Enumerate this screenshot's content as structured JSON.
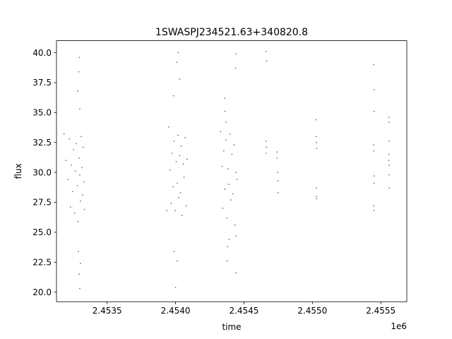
{
  "chart_data": {
    "type": "scatter",
    "title": "1SWASPJ234521.63+340820.8",
    "xlabel": "time",
    "ylabel": "flux",
    "x_offset_label": "1e6",
    "xlim": [
      2453130,
      2455690
    ],
    "ylim": [
      19.2,
      41.0
    ],
    "x_ticks": [
      2453500,
      2454000,
      2454500,
      2455000,
      2455500
    ],
    "x_tick_labels": [
      "2.4535",
      "2.4540",
      "2.4545",
      "2.4550",
      "2.4555"
    ],
    "y_ticks": [
      20.0,
      22.5,
      25.0,
      27.5,
      30.0,
      32.5,
      35.0,
      37.5,
      40.0
    ],
    "y_tick_labels": [
      "20.0",
      "22.5",
      "25.0",
      "27.5",
      "30.0",
      "32.5",
      "35.0",
      "37.5",
      "40.0"
    ],
    "grid": false,
    "point_color": "#1f77b4",
    "series": [
      {
        "points": [
          [
            2453185,
            33.2
          ],
          [
            2453200,
            31.0
          ],
          [
            2453215,
            29.4
          ],
          [
            2453225,
            32.8
          ],
          [
            2453232,
            27.1
          ],
          [
            2453240,
            30.6
          ],
          [
            2453248,
            28.4
          ],
          [
            2453255,
            31.9
          ],
          [
            2453262,
            26.6
          ],
          [
            2453268,
            30.1
          ],
          [
            2453275,
            32.4
          ],
          [
            2453282,
            28.9
          ],
          [
            2453288,
            25.9
          ],
          [
            2453295,
            31.2
          ],
          [
            2453300,
            29.8
          ],
          [
            2453305,
            27.6
          ],
          [
            2453310,
            33.0
          ],
          [
            2453315,
            30.4
          ],
          [
            2453320,
            28.1
          ],
          [
            2453325,
            32.1
          ],
          [
            2453330,
            29.2
          ],
          [
            2453335,
            26.9
          ],
          [
            2453285,
            36.8
          ],
          [
            2453292,
            38.4
          ],
          [
            2453298,
            39.6
          ],
          [
            2453300,
            35.3
          ],
          [
            2453290,
            23.4
          ],
          [
            2453295,
            21.5
          ],
          [
            2453300,
            20.3
          ],
          [
            2453305,
            22.4
          ],
          [
            2453950,
            33.8
          ],
          [
            2453960,
            30.2
          ],
          [
            2453968,
            27.4
          ],
          [
            2453975,
            31.6
          ],
          [
            2453982,
            28.8
          ],
          [
            2453990,
            32.6
          ],
          [
            2453998,
            26.8
          ],
          [
            2454005,
            30.9
          ],
          [
            2454012,
            29.1
          ],
          [
            2454018,
            33.1
          ],
          [
            2454024,
            27.9
          ],
          [
            2454030,
            31.4
          ],
          [
            2454036,
            28.3
          ],
          [
            2454042,
            32.2
          ],
          [
            2454048,
            26.4
          ],
          [
            2454055,
            30.7
          ],
          [
            2454062,
            29.6
          ],
          [
            2454070,
            32.9
          ],
          [
            2454078,
            27.2
          ],
          [
            2454085,
            31.1
          ],
          [
            2453985,
            36.4
          ],
          [
            2454010,
            39.2
          ],
          [
            2454020,
            40.0
          ],
          [
            2454030,
            37.8
          ],
          [
            2453990,
            23.4
          ],
          [
            2454000,
            20.4
          ],
          [
            2454012,
            22.6
          ],
          [
            2453935,
            26.8
          ],
          [
            2454330,
            33.4
          ],
          [
            2454338,
            30.5
          ],
          [
            2454345,
            27.0
          ],
          [
            2454352,
            31.8
          ],
          [
            2454360,
            28.6
          ],
          [
            2454368,
            32.7
          ],
          [
            2454375,
            26.2
          ],
          [
            2454382,
            30.3
          ],
          [
            2454390,
            29.0
          ],
          [
            2454398,
            33.2
          ],
          [
            2454405,
            27.7
          ],
          [
            2454412,
            31.5
          ],
          [
            2454420,
            28.2
          ],
          [
            2454428,
            32.3
          ],
          [
            2454435,
            25.6
          ],
          [
            2454442,
            30.0
          ],
          [
            2454450,
            29.4
          ],
          [
            2454360,
            36.2
          ],
          [
            2454362,
            35.1
          ],
          [
            2454370,
            34.2
          ],
          [
            2454440,
            39.9
          ],
          [
            2454438,
            38.7
          ],
          [
            2454380,
            23.8
          ],
          [
            2454378,
            22.6
          ],
          [
            2454392,
            24.4
          ],
          [
            2454440,
            21.6
          ],
          [
            2454440,
            24.7
          ],
          [
            2454662,
            40.1
          ],
          [
            2454665,
            39.3
          ],
          [
            2454660,
            32.6
          ],
          [
            2454662,
            31.6
          ],
          [
            2454665,
            32.1
          ],
          [
            2454742,
            31.7
          ],
          [
            2454745,
            30.0
          ],
          [
            2454748,
            29.3
          ],
          [
            2454750,
            28.3
          ],
          [
            2454743,
            31.2
          ],
          [
            2455027,
            34.4
          ],
          [
            2455028,
            33.0
          ],
          [
            2455030,
            32.5
          ],
          [
            2455032,
            32.0
          ],
          [
            2455029,
            28.7
          ],
          [
            2455031,
            27.8
          ],
          [
            2455028,
            28.0
          ],
          [
            2455448,
            39.0
          ],
          [
            2455450,
            36.9
          ],
          [
            2455452,
            35.1
          ],
          [
            2455448,
            32.3
          ],
          [
            2455450,
            31.8
          ],
          [
            2455452,
            29.7
          ],
          [
            2455450,
            29.1
          ],
          [
            2455448,
            27.2
          ],
          [
            2455452,
            26.8
          ],
          [
            2455558,
            34.6
          ],
          [
            2455560,
            34.2
          ],
          [
            2455562,
            32.6
          ],
          [
            2455559,
            31.5
          ],
          [
            2455561,
            30.6
          ],
          [
            2455560,
            29.8
          ],
          [
            2455562,
            28.7
          ],
          [
            2455558,
            31.0
          ]
        ]
      }
    ]
  }
}
